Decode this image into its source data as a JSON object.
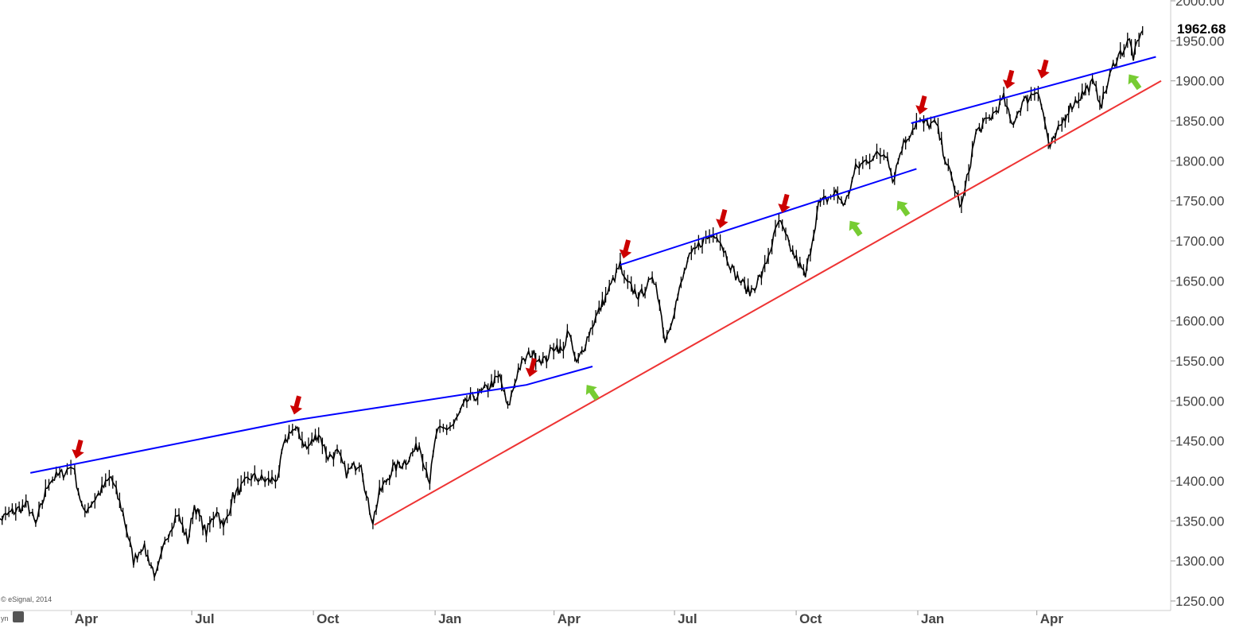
{
  "chart_data": {
    "type": "line",
    "title": "",
    "xlabel": "",
    "ylabel": "",
    "credit": "© eSignal, 2014",
    "corner_text": "yn",
    "last_value": "1962.68",
    "ylim": [
      1250,
      2000
    ],
    "y_ticks": [
      "1250.00",
      "1300.00",
      "1350.00",
      "1400.00",
      "1450.00",
      "1500.00",
      "1550.00",
      "1600.00",
      "1650.00",
      "1700.00",
      "1750.00",
      "1800.00",
      "1850.00",
      "1900.00",
      "1950.00",
      "2000.00"
    ],
    "x_ticks": [
      {
        "label": "Apr",
        "x": "2012-04-01"
      },
      {
        "label": "Jul",
        "x": "2012-07-01"
      },
      {
        "label": "Oct",
        "x": "2012-10-01"
      },
      {
        "label": "Jan",
        "x": "2013-01-01"
      },
      {
        "label": "Apr",
        "x": "2013-04-01"
      },
      {
        "label": "Jul",
        "x": "2013-07-01"
      },
      {
        "label": "Oct",
        "x": "2013-10-01"
      },
      {
        "label": "Jan",
        "x": "2014-01-01"
      },
      {
        "label": "Apr",
        "x": "2014-04-01"
      }
    ],
    "xlim": [
      "2012-02-01",
      "2014-07-10"
    ],
    "series": [
      {
        "style": "price",
        "color": "#000000",
        "points": [
          [
            "2012-02-01",
            1345
          ],
          [
            "2012-02-15",
            1360
          ],
          [
            "2012-02-28",
            1370
          ],
          [
            "2012-03-05",
            1345
          ],
          [
            "2012-03-15",
            1400
          ],
          [
            "2012-03-26",
            1410
          ],
          [
            "2012-04-02",
            1420
          ],
          [
            "2012-04-05",
            1398
          ],
          [
            "2012-04-10",
            1360
          ],
          [
            "2012-04-20",
            1380
          ],
          [
            "2012-05-01",
            1405
          ],
          [
            "2012-05-10",
            1360
          ],
          [
            "2012-05-18",
            1300
          ],
          [
            "2012-05-25",
            1320
          ],
          [
            "2012-06-04",
            1280
          ],
          [
            "2012-06-12",
            1330
          ],
          [
            "2012-06-20",
            1360
          ],
          [
            "2012-06-28",
            1325
          ],
          [
            "2012-07-03",
            1370
          ],
          [
            "2012-07-12",
            1335
          ],
          [
            "2012-07-20",
            1365
          ],
          [
            "2012-07-25",
            1340
          ],
          [
            "2012-08-01",
            1380
          ],
          [
            "2012-08-15",
            1405
          ],
          [
            "2012-08-28",
            1400
          ],
          [
            "2012-09-05",
            1405
          ],
          [
            "2012-09-07",
            1435
          ],
          [
            "2012-09-14",
            1465
          ],
          [
            "2012-09-20",
            1460
          ],
          [
            "2012-09-26",
            1440
          ],
          [
            "2012-10-05",
            1460
          ],
          [
            "2012-10-12",
            1430
          ],
          [
            "2012-10-19",
            1435
          ],
          [
            "2012-10-26",
            1410
          ],
          [
            "2012-11-06",
            1425
          ],
          [
            "2012-11-10",
            1380
          ],
          [
            "2012-11-15",
            1350
          ],
          [
            "2012-11-20",
            1385
          ],
          [
            "2012-11-30",
            1415
          ],
          [
            "2012-12-10",
            1425
          ],
          [
            "2012-12-20",
            1445
          ],
          [
            "2012-12-28",
            1400
          ],
          [
            "2013-01-02",
            1460
          ],
          [
            "2013-01-15",
            1470
          ],
          [
            "2013-01-25",
            1500
          ],
          [
            "2013-02-05",
            1510
          ],
          [
            "2013-02-19",
            1530
          ],
          [
            "2013-02-25",
            1490
          ],
          [
            "2013-03-05",
            1540
          ],
          [
            "2013-03-14",
            1560
          ],
          [
            "2013-03-25",
            1550
          ],
          [
            "2013-04-02",
            1570
          ],
          [
            "2013-04-08",
            1560
          ],
          [
            "2013-04-11",
            1590
          ],
          [
            "2013-04-18",
            1545
          ],
          [
            "2013-04-30",
            1595
          ],
          [
            "2013-05-10",
            1630
          ],
          [
            "2013-05-21",
            1670
          ],
          [
            "2013-05-24",
            1650
          ],
          [
            "2013-06-05",
            1630
          ],
          [
            "2013-06-10",
            1645
          ],
          [
            "2013-06-17",
            1650
          ],
          [
            "2013-06-24",
            1575
          ],
          [
            "2013-07-01",
            1615
          ],
          [
            "2013-07-11",
            1675
          ],
          [
            "2013-07-22",
            1700
          ],
          [
            "2013-08-02",
            1710
          ],
          [
            "2013-08-15",
            1660
          ],
          [
            "2013-08-27",
            1635
          ],
          [
            "2013-09-06",
            1660
          ],
          [
            "2013-09-18",
            1725
          ],
          [
            "2013-09-27",
            1690
          ],
          [
            "2013-10-08",
            1655
          ],
          [
            "2013-10-18",
            1745
          ],
          [
            "2013-10-31",
            1760
          ],
          [
            "2013-11-07",
            1745
          ],
          [
            "2013-11-15",
            1790
          ],
          [
            "2013-11-27",
            1805
          ],
          [
            "2013-12-09",
            1810
          ],
          [
            "2013-12-13",
            1775
          ],
          [
            "2013-12-20",
            1818
          ],
          [
            "2013-12-31",
            1848
          ],
          [
            "2014-01-15",
            1845
          ],
          [
            "2014-01-24",
            1790
          ],
          [
            "2014-02-03",
            1741
          ],
          [
            "2014-02-14",
            1835
          ],
          [
            "2014-02-28",
            1860
          ],
          [
            "2014-03-07",
            1878
          ],
          [
            "2014-03-13",
            1845
          ],
          [
            "2014-03-21",
            1872
          ],
          [
            "2014-04-02",
            1890
          ],
          [
            "2014-04-11",
            1815
          ],
          [
            "2014-04-25",
            1865
          ],
          [
            "2014-05-13",
            1897
          ],
          [
            "2014-05-20",
            1872
          ],
          [
            "2014-05-30",
            1925
          ],
          [
            "2014-06-10",
            1950
          ],
          [
            "2014-06-13",
            1930
          ],
          [
            "2014-06-20",
            1962.68
          ]
        ]
      },
      {
        "style": "trend",
        "color": "#0000ff",
        "points": [
          [
            "2012-03-01",
            1410
          ],
          [
            "2012-09-14",
            1475
          ],
          [
            "2013-03-11",
            1520
          ],
          [
            "2013-04-30",
            1543
          ]
        ]
      },
      {
        "style": "trend",
        "color": "#0000ff",
        "points": [
          [
            "2013-05-21",
            1670
          ],
          [
            "2013-12-31",
            1790
          ]
        ]
      },
      {
        "style": "trend",
        "color": "#0000ff",
        "points": [
          [
            "2013-12-27",
            1847
          ],
          [
            "2014-06-30",
            1930
          ]
        ]
      },
      {
        "style": "trend",
        "color": "#ee3333",
        "points": [
          [
            "2012-11-16",
            1345
          ],
          [
            "2014-07-04",
            1900
          ]
        ]
      }
    ],
    "annotations": [
      {
        "type": "resistance-arrow",
        "color": "#cc0000",
        "x": "2012-04-02",
        "y": 1420
      },
      {
        "type": "resistance-arrow",
        "color": "#cc0000",
        "x": "2012-09-14",
        "y": 1475
      },
      {
        "type": "resistance-arrow",
        "color": "#cc0000",
        "x": "2013-03-11",
        "y": 1522
      },
      {
        "type": "resistance-arrow",
        "color": "#cc0000",
        "x": "2013-05-21",
        "y": 1670
      },
      {
        "type": "resistance-arrow",
        "color": "#cc0000",
        "x": "2013-08-02",
        "y": 1708
      },
      {
        "type": "resistance-arrow",
        "color": "#cc0000",
        "x": "2013-09-18",
        "y": 1727
      },
      {
        "type": "resistance-arrow",
        "color": "#cc0000",
        "x": "2013-12-31",
        "y": 1850
      },
      {
        "type": "resistance-arrow",
        "color": "#cc0000",
        "x": "2014-03-07",
        "y": 1882
      },
      {
        "type": "resistance-arrow",
        "color": "#cc0000",
        "x": "2014-04-02",
        "y": 1895
      },
      {
        "type": "support-arrow",
        "color": "#77cc33",
        "x": "2013-04-22",
        "y": 1530
      },
      {
        "type": "support-arrow",
        "color": "#77cc33",
        "x": "2013-11-07",
        "y": 1735
      },
      {
        "type": "support-arrow",
        "color": "#77cc33",
        "x": "2013-12-13",
        "y": 1760
      },
      {
        "type": "support-arrow",
        "color": "#77cc33",
        "x": "2014-06-06",
        "y": 1918
      }
    ],
    "grid": false,
    "legend": "none"
  }
}
